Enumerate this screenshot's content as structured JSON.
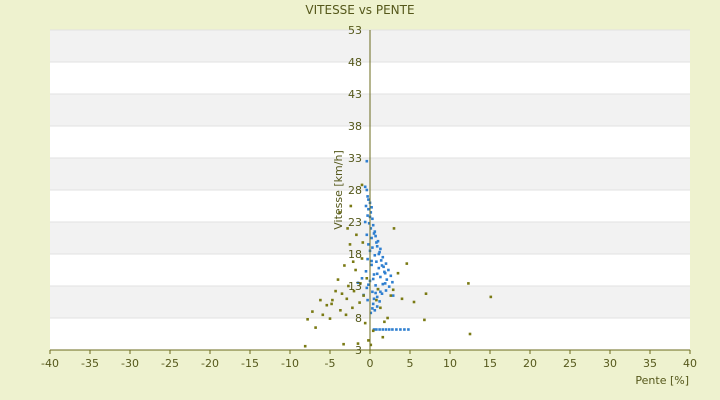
{
  "chart_data": {
    "type": "scatter",
    "title": "VITESSE vs PENTE",
    "xlabel": "Pente [%]",
    "ylabel": "Vitesse [km/h]",
    "xlim": [
      -40,
      40
    ],
    "ylim": [
      3,
      53
    ],
    "xticks": [
      -40,
      -35,
      -30,
      -25,
      -20,
      -15,
      -10,
      -5,
      0,
      5,
      10,
      15,
      20,
      25,
      30,
      35,
      40
    ],
    "yticks": [
      3,
      8,
      13,
      18,
      23,
      28,
      33,
      38,
      43,
      48,
      53
    ],
    "grid": "horizontal alternating bands",
    "legend": "none",
    "colors": {
      "background": "#eef2cf",
      "plot_band_light": "#ffffff",
      "plot_band_dark": "#f2f2f2",
      "axis": "#6b6b1e",
      "text": "#55581b",
      "series_blue": "#2f7fd0",
      "series_olive": "#7a7a14"
    },
    "series": [
      {
        "color": "#2f7fd0",
        "marker": "dot",
        "points": [
          [
            -0.4,
            32.5
          ],
          [
            -0.6,
            28.5
          ],
          [
            -0.4,
            28
          ],
          [
            -0.3,
            27
          ],
          [
            -0.2,
            26.5
          ],
          [
            0,
            26
          ],
          [
            -0.5,
            25.5
          ],
          [
            -0.2,
            25
          ],
          [
            0.1,
            24.5
          ],
          [
            -0.3,
            24
          ],
          [
            0,
            23.8
          ],
          [
            0.3,
            23.5
          ],
          [
            -0.6,
            23
          ],
          [
            0.4,
            22.5
          ],
          [
            0.1,
            22
          ],
          [
            0.6,
            21.5
          ],
          [
            -0.4,
            21
          ],
          [
            0.7,
            20.8
          ],
          [
            0.2,
            20.5
          ],
          [
            1.0,
            20
          ],
          [
            -0.2,
            19.5
          ],
          [
            0.9,
            19.2
          ],
          [
            0.3,
            19
          ],
          [
            1.3,
            18.8
          ],
          [
            0,
            18.5
          ],
          [
            1.1,
            18
          ],
          [
            0.6,
            17.8
          ],
          [
            1.6,
            17.5
          ],
          [
            -0.3,
            17.2
          ],
          [
            1.4,
            17
          ],
          [
            0.8,
            16.8
          ],
          [
            2.0,
            16.5
          ],
          [
            0.2,
            16.3
          ],
          [
            1.7,
            16
          ],
          [
            1.1,
            15.8
          ],
          [
            2.3,
            15.5
          ],
          [
            -0.5,
            15.3
          ],
          [
            1.9,
            15
          ],
          [
            0.5,
            14.8
          ],
          [
            2.6,
            14.6
          ],
          [
            1.3,
            14.4
          ],
          [
            -1.0,
            14.2
          ],
          [
            2.1,
            14
          ],
          [
            0.0,
            13.8
          ],
          [
            2.8,
            13.6
          ],
          [
            -1.5,
            13.5
          ],
          [
            1.6,
            13.3
          ],
          [
            0.7,
            13.1
          ],
          [
            2.4,
            12.9
          ],
          [
            -0.4,
            12.7
          ],
          [
            1.0,
            12.5
          ],
          [
            2.0,
            12.3
          ],
          [
            0.3,
            12.1
          ],
          [
            1.5,
            11.8
          ],
          [
            -0.8,
            11.6
          ],
          [
            0.9,
            11.3
          ],
          [
            2.9,
            11.5
          ],
          [
            0.5,
            11
          ],
          [
            1.2,
            10.6
          ],
          [
            0.4,
            10.2
          ],
          [
            0.9,
            9.8
          ],
          [
            0.3,
            9.5
          ],
          [
            0.6,
            9.2
          ],
          [
            0.1,
            8.8
          ],
          [
            0.5,
            6.2
          ],
          [
            0.8,
            6.2
          ],
          [
            1.2,
            6.2
          ],
          [
            1.6,
            6.2
          ],
          [
            2.0,
            6.2
          ],
          [
            2.4,
            6.2
          ],
          [
            2.8,
            6.2
          ],
          [
            3.3,
            6.2
          ],
          [
            3.8,
            6.2
          ],
          [
            4.3,
            6.2
          ],
          [
            4.8,
            6.2
          ],
          [
            0.2,
            25.3
          ],
          [
            -0.1,
            22.8
          ],
          [
            0.5,
            21.2
          ],
          [
            0.8,
            19.8
          ],
          [
            1.2,
            18.3
          ],
          [
            1.5,
            16.2
          ],
          [
            1.8,
            15.2
          ],
          [
            0.4,
            14.1
          ],
          [
            -0.2,
            13.2
          ],
          [
            1.3,
            12.1
          ],
          [
            0.7,
            11.9
          ],
          [
            -0.3,
            10.8
          ],
          [
            0.2,
            16.9
          ],
          [
            0.9,
            14.9
          ],
          [
            1.9,
            13.4
          ]
        ]
      },
      {
        "color": "#7a7a14",
        "marker": "dot",
        "points": [
          [
            -8.1,
            3.6
          ],
          [
            -7.8,
            7.8
          ],
          [
            -7.2,
            9.0
          ],
          [
            -6.8,
            6.5
          ],
          [
            -5.9,
            8.5
          ],
          [
            -5.4,
            10.0
          ],
          [
            -5.0,
            7.9
          ],
          [
            -4.7,
            10.8
          ],
          [
            -4.3,
            12.2
          ],
          [
            -4.0,
            14.0
          ],
          [
            -3.7,
            9.2
          ],
          [
            -3.5,
            11.8
          ],
          [
            -3.2,
            16.2
          ],
          [
            -3.0,
            8.5
          ],
          [
            -2.9,
            11.0
          ],
          [
            -2.7,
            13.0
          ],
          [
            -2.5,
            19.5
          ],
          [
            -2.4,
            25.5
          ],
          [
            -2.2,
            9.6
          ],
          [
            -2.0,
            12.2
          ],
          [
            -1.8,
            15.5
          ],
          [
            -1.7,
            21.0
          ],
          [
            -1.5,
            4.0
          ],
          [
            -1.3,
            10.4
          ],
          [
            -1.2,
            13.4
          ],
          [
            -1.0,
            17.3
          ],
          [
            -0.8,
            11.5
          ],
          [
            -0.6,
            7.2
          ],
          [
            -0.4,
            14.2
          ],
          [
            -0.2,
            4.5
          ],
          [
            0.1,
            3.8
          ],
          [
            0.4,
            6.0
          ],
          [
            0.8,
            10.8
          ],
          [
            1.0,
            12.5
          ],
          [
            1.3,
            9.6
          ],
          [
            1.8,
            7.4
          ],
          [
            2.2,
            8.0
          ],
          [
            2.6,
            11.5
          ],
          [
            3.0,
            22.0
          ],
          [
            3.5,
            15.0
          ],
          [
            4.0,
            11.0
          ],
          [
            4.6,
            16.5
          ],
          [
            5.5,
            10.5
          ],
          [
            6.8,
            7.7
          ],
          [
            7.0,
            11.8
          ],
          [
            12.3,
            13.4
          ],
          [
            12.5,
            5.5
          ],
          [
            15.1,
            11.3
          ],
          [
            -3.3,
            3.9
          ],
          [
            -4.8,
            10.2
          ],
          [
            -2.8,
            22.0
          ],
          [
            -3.8,
            24.5
          ],
          [
            -1.0,
            28.8
          ],
          [
            -6.2,
            10.8
          ],
          [
            1.6,
            5.0
          ],
          [
            2.9,
            12.4
          ],
          [
            -2.1,
            16.8
          ],
          [
            -0.9,
            19.8
          ]
        ]
      }
    ]
  }
}
